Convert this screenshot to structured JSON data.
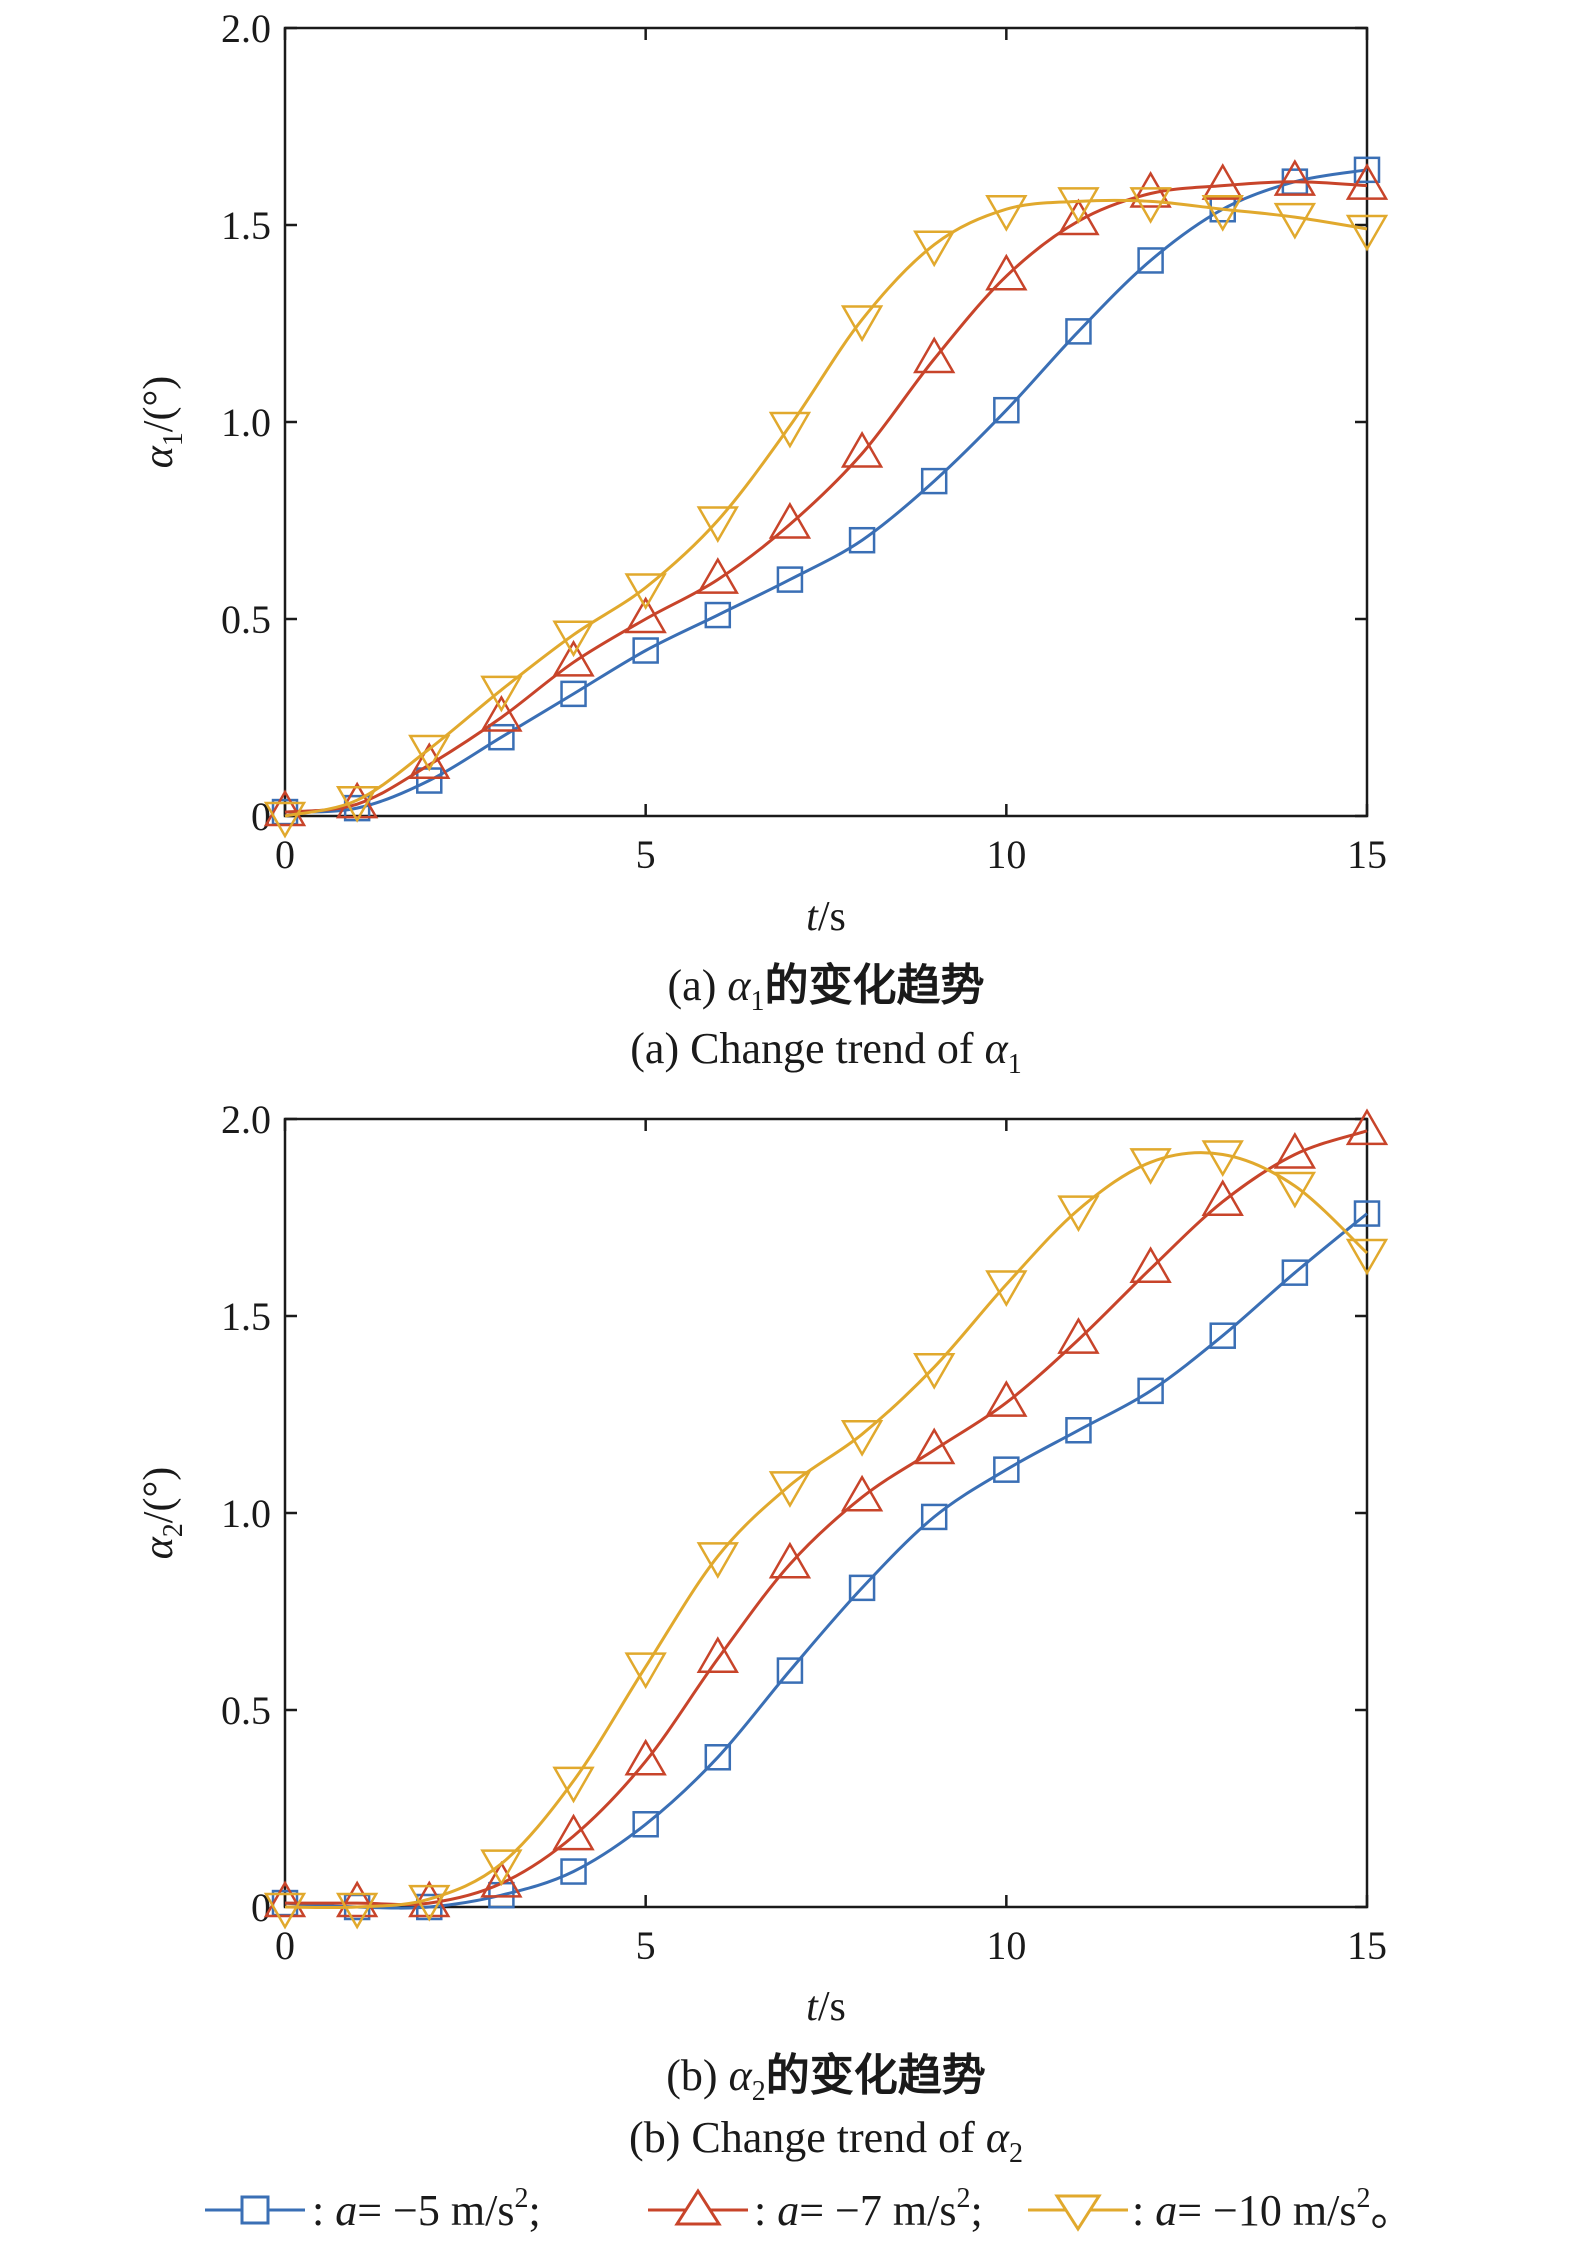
{
  "legend": {
    "entries": [
      {
        "text_prefix": ": ",
        "var": "a",
        "text": "= −5 m/s",
        "sup": "2",
        "end": ";"
      },
      {
        "text_prefix": ": ",
        "var": "a",
        "text": "= −7 m/s",
        "sup": "2",
        "end": ";"
      },
      {
        "text_prefix": ": ",
        "var": "a",
        "text": "= −10 m/s",
        "sup": "2",
        "end": "。"
      }
    ]
  },
  "colors": {
    "a5": "#3a6fb5",
    "a7": "#c8442a",
    "a10": "#e1a92d"
  },
  "chart_data": [
    {
      "type": "line",
      "xlabel": {
        "var": "t",
        "unit": "/s"
      },
      "ylabel": {
        "sym": "α",
        "sub": "1",
        "unit": "/(°)"
      },
      "caption_cn": {
        "prefix": "(a) ",
        "sym": "α",
        "sub": "1",
        "rest": "的变化趋势"
      },
      "caption_en": {
        "prefix": "(a) Change trend of ",
        "sym": "α",
        "sub": "1"
      },
      "xlim": [
        0,
        15
      ],
      "ylim": [
        0,
        2.0
      ],
      "xticks": [
        "0",
        "5",
        "10",
        "15"
      ],
      "yticks": [
        "0",
        "0.5",
        "1.0",
        "1.5",
        "2.0"
      ],
      "x": [
        0,
        1,
        2,
        3,
        4,
        5,
        6,
        7,
        8,
        9,
        10,
        11,
        12,
        13,
        14,
        15
      ],
      "series": [
        {
          "name": "a=-5 m/s2",
          "marker": "square",
          "color": "#3a6fb5",
          "values": [
            0.01,
            0.02,
            0.09,
            0.2,
            0.31,
            0.42,
            0.51,
            0.6,
            0.7,
            0.85,
            1.03,
            1.23,
            1.41,
            1.54,
            1.61,
            1.64
          ]
        },
        {
          "name": "a=-7 m/s2",
          "marker": "triangle-up",
          "color": "#c8442a",
          "values": [
            0.01,
            0.03,
            0.13,
            0.25,
            0.39,
            0.5,
            0.6,
            0.74,
            0.92,
            1.16,
            1.37,
            1.51,
            1.58,
            1.6,
            1.61,
            1.6
          ]
        },
        {
          "name": "a=-10 m/s2",
          "marker": "triangle-down",
          "color": "#e1a92d",
          "values": [
            0.0,
            0.04,
            0.17,
            0.32,
            0.46,
            0.58,
            0.75,
            0.99,
            1.26,
            1.45,
            1.54,
            1.56,
            1.56,
            1.54,
            1.52,
            1.49
          ]
        }
      ]
    },
    {
      "type": "line",
      "xlabel": {
        "var": "t",
        "unit": "/s"
      },
      "ylabel": {
        "sym": "α",
        "sub": "2",
        "unit": "/(°)"
      },
      "caption_cn": {
        "prefix": "(b) ",
        "sym": "α",
        "sub": "2",
        "rest": "的变化趋势"
      },
      "caption_en": {
        "prefix": "(b) Change trend of ",
        "sym": "α",
        "sub": "2"
      },
      "xlim": [
        0,
        15
      ],
      "ylim": [
        0,
        2.0
      ],
      "xticks": [
        "0",
        "5",
        "10",
        "15"
      ],
      "yticks": [
        "0",
        "0.5",
        "1.0",
        "1.5",
        "2.0"
      ],
      "x": [
        0,
        1,
        2,
        3,
        4,
        5,
        6,
        7,
        8,
        9,
        10,
        11,
        12,
        13,
        14,
        15
      ],
      "series": [
        {
          "name": "a=-5 m/s2",
          "marker": "square",
          "color": "#3a6fb5",
          "values": [
            0.01,
            0.0,
            0.0,
            0.03,
            0.09,
            0.21,
            0.38,
            0.6,
            0.81,
            0.99,
            1.11,
            1.21,
            1.31,
            1.45,
            1.61,
            1.76
          ]
        },
        {
          "name": "a=-7 m/s2",
          "marker": "triangle-up",
          "color": "#c8442a",
          "values": [
            0.01,
            0.01,
            0.01,
            0.06,
            0.18,
            0.37,
            0.63,
            0.87,
            1.04,
            1.16,
            1.28,
            1.44,
            1.62,
            1.79,
            1.91,
            1.97
          ]
        },
        {
          "name": "a=-10 m/s2",
          "marker": "triangle-down",
          "color": "#e1a92d",
          "values": [
            0.0,
            0.0,
            0.02,
            0.11,
            0.32,
            0.61,
            0.89,
            1.07,
            1.2,
            1.37,
            1.58,
            1.77,
            1.89,
            1.91,
            1.83,
            1.66
          ]
        }
      ]
    }
  ]
}
